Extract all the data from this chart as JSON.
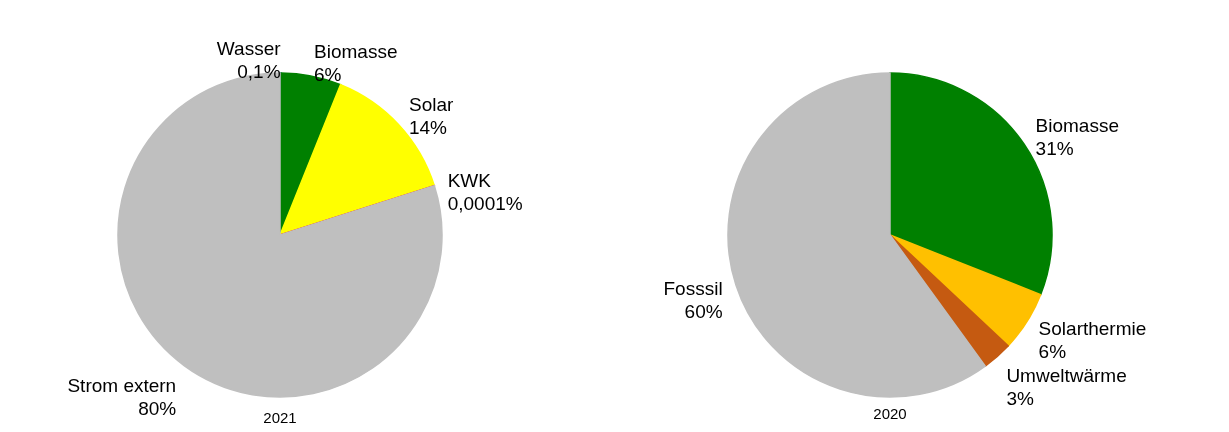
{
  "chart_data": [
    {
      "type": "pie",
      "title": "2021",
      "categories": [
        "Wasser",
        "Biomasse",
        "Solar",
        "KWK",
        "Strom extern"
      ],
      "values": [
        0.1,
        6,
        14,
        0.0001,
        80
      ],
      "colors": [
        "#0070c0",
        "#008000",
        "#ffff00",
        "#ff0000",
        "#bfbfbf"
      ],
      "value_labels": [
        "0,1%",
        "6%",
        "14%",
        "0,0001%",
        "80%"
      ]
    },
    {
      "type": "pie",
      "title": "2020",
      "categories": [
        "Biomasse",
        "Solarthermie",
        "Umweltwärme",
        "Fosssil"
      ],
      "values": [
        31,
        6,
        3,
        60
      ],
      "colors": [
        "#008000",
        "#ffc000",
        "#c55a11",
        "#bfbfbf"
      ],
      "value_labels": [
        "31%",
        "6%",
        "3%",
        "60%"
      ]
    }
  ]
}
